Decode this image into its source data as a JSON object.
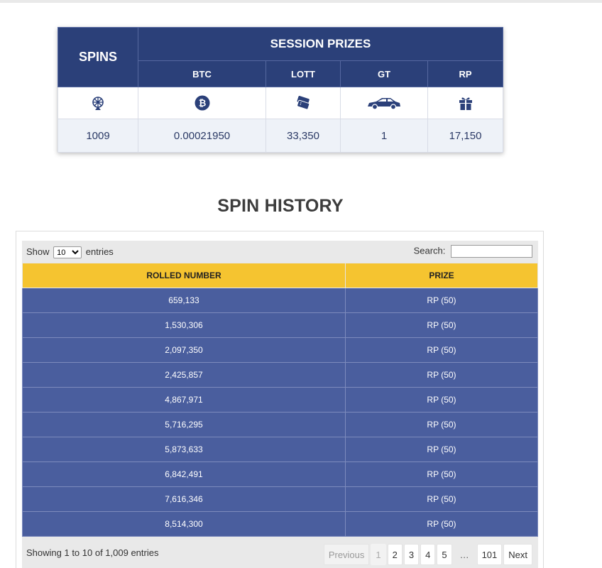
{
  "session_table": {
    "spins_header": "SPINS",
    "session_header": "SESSION PRIZES",
    "columns": [
      "BTC",
      "LOTT",
      "GT",
      "RP"
    ],
    "icons": [
      "wheel-icon",
      "bitcoin-icon",
      "tickets-icon",
      "car-icon",
      "gift-icon"
    ],
    "values": {
      "spins": "1009",
      "btc": "0.00021950",
      "lott": "33,350",
      "gt": "1",
      "rp": "17,150"
    }
  },
  "history": {
    "title": "SPIN HISTORY",
    "show_label": "Show",
    "entries_label": "entries",
    "page_size": "10",
    "search_label": "Search:",
    "search_value": "",
    "headers": [
      "ROLLED NUMBER",
      "PRIZE"
    ],
    "rows": [
      [
        "659,133",
        "RP (50)"
      ],
      [
        "1,530,306",
        "RP (50)"
      ],
      [
        "2,097,350",
        "RP (50)"
      ],
      [
        "2,425,857",
        "RP (50)"
      ],
      [
        "4,867,971",
        "RP (50)"
      ],
      [
        "5,716,295",
        "RP (50)"
      ],
      [
        "5,873,633",
        "RP (50)"
      ],
      [
        "6,842,491",
        "RP (50)"
      ],
      [
        "7,616,346",
        "RP (50)"
      ],
      [
        "8,514,300",
        "RP (50)"
      ]
    ],
    "info": "Showing 1 to 10 of 1,009 entries",
    "pagination": {
      "previous": "Previous",
      "pages": [
        "1",
        "2",
        "3",
        "4",
        "5"
      ],
      "ellipsis": "…",
      "last": "101",
      "next": "Next"
    }
  },
  "colors": {
    "header_navy": "#2b4079",
    "row_blue": "#4a5e9e",
    "header_yellow": "#f5c430"
  }
}
